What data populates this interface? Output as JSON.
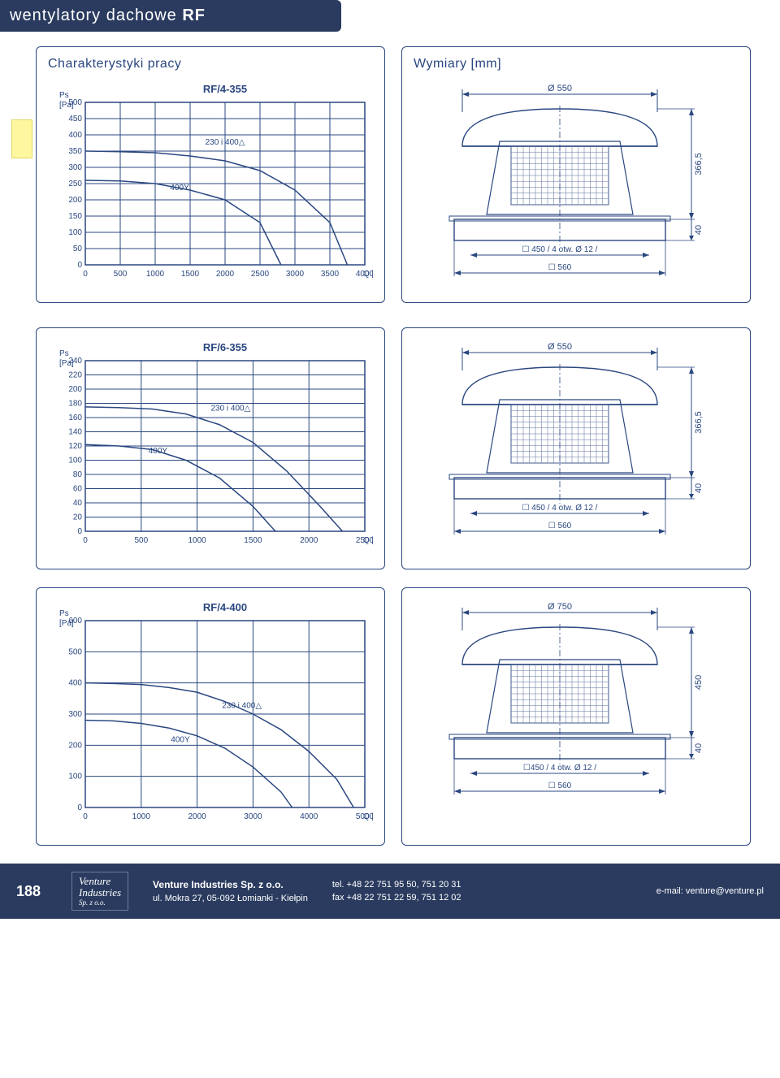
{
  "header": {
    "title_prefix": "wentylatory dachowe ",
    "title_bold": "RF"
  },
  "side_tab_color": "#fff7a0",
  "chart1": {
    "section_title": "Charakterystyki pracy",
    "title": "RF/4-355",
    "y_label": "Ps\n[Pa]",
    "x_label": "Q [m³/h]",
    "y_ticks": [
      0,
      50,
      100,
      150,
      200,
      250,
      300,
      350,
      400,
      450,
      500
    ],
    "x_ticks": [
      0,
      500,
      1000,
      1500,
      2000,
      2500,
      3000,
      3500,
      4000
    ],
    "curves": [
      {
        "label": "230 i 400△",
        "label_x": 2000,
        "label_y": 370,
        "points": [
          [
            0,
            350
          ],
          [
            500,
            348
          ],
          [
            1000,
            345
          ],
          [
            1500,
            335
          ],
          [
            2000,
            320
          ],
          [
            2500,
            290
          ],
          [
            3000,
            230
          ],
          [
            3500,
            130
          ],
          [
            3750,
            0
          ]
        ]
      },
      {
        "label": "400Y",
        "label_x": 1350,
        "label_y": 230,
        "points": [
          [
            0,
            260
          ],
          [
            500,
            258
          ],
          [
            1000,
            250
          ],
          [
            1500,
            230
          ],
          [
            2000,
            200
          ],
          [
            2500,
            130
          ],
          [
            2800,
            0
          ]
        ]
      }
    ],
    "grid_color": "#2a4780",
    "curve_color": "#2a4780",
    "text_color": "#2a4780",
    "bg": "#ffffff",
    "axis_fontsize": 10,
    "title_fontsize": 13
  },
  "dim1": {
    "section_title": "Wymiary [mm]",
    "top_dia": "Ø 550",
    "height_main": "366,5",
    "height_base": "40",
    "base_holes": "☐ 450 / 4 otw. Ø 12 /",
    "base_width": "☐ 560",
    "stroke": "#2a4780",
    "mesh": "#5a6f9a"
  },
  "chart2": {
    "title": "RF/6-355",
    "y_label": "Ps\n[Pa]",
    "x_label": "Q [m³/h]",
    "y_ticks": [
      0,
      20,
      40,
      60,
      80,
      100,
      120,
      140,
      160,
      180,
      200,
      220,
      240
    ],
    "x_ticks": [
      0,
      500,
      1000,
      1500,
      2000,
      2500
    ],
    "curves": [
      {
        "label": "230 i 400△",
        "label_x": 1300,
        "label_y": 170,
        "points": [
          [
            0,
            175
          ],
          [
            300,
            174
          ],
          [
            600,
            172
          ],
          [
            900,
            165
          ],
          [
            1200,
            150
          ],
          [
            1500,
            125
          ],
          [
            1800,
            85
          ],
          [
            2100,
            35
          ],
          [
            2300,
            0
          ]
        ]
      },
      {
        "label": "400Y",
        "label_x": 650,
        "label_y": 110,
        "points": [
          [
            0,
            122
          ],
          [
            300,
            120
          ],
          [
            600,
            115
          ],
          [
            900,
            100
          ],
          [
            1200,
            75
          ],
          [
            1500,
            35
          ],
          [
            1700,
            0
          ]
        ]
      }
    ],
    "grid_color": "#2a4780",
    "curve_color": "#2a4780",
    "text_color": "#2a4780",
    "bg": "#ffffff",
    "axis_fontsize": 10,
    "title_fontsize": 13
  },
  "dim2": {
    "top_dia": "Ø 550",
    "height_main": "366,5",
    "height_base": "40",
    "base_holes": "☐ 450 / 4 otw. Ø 12 /",
    "base_width": "☐ 560",
    "stroke": "#2a4780",
    "mesh": "#5a6f9a"
  },
  "chart3": {
    "title": "RF/4-400",
    "y_label": "Ps\n[Pa]",
    "x_label": "Q [m³/h]",
    "y_ticks": [
      0,
      100,
      200,
      300,
      400,
      500,
      600
    ],
    "x_ticks": [
      0,
      1000,
      2000,
      3000,
      4000,
      5000
    ],
    "curves": [
      {
        "label": "230 i 400△",
        "label_x": 2800,
        "label_y": 320,
        "points": [
          [
            0,
            400
          ],
          [
            500,
            398
          ],
          [
            1000,
            395
          ],
          [
            1500,
            385
          ],
          [
            2000,
            370
          ],
          [
            2500,
            340
          ],
          [
            3000,
            300
          ],
          [
            3500,
            250
          ],
          [
            4000,
            180
          ],
          [
            4500,
            90
          ],
          [
            4800,
            0
          ]
        ]
      },
      {
        "label": "400Y",
        "label_x": 1700,
        "label_y": 210,
        "points": [
          [
            0,
            280
          ],
          [
            500,
            278
          ],
          [
            1000,
            270
          ],
          [
            1500,
            255
          ],
          [
            2000,
            230
          ],
          [
            2500,
            190
          ],
          [
            3000,
            130
          ],
          [
            3500,
            50
          ],
          [
            3700,
            0
          ]
        ]
      }
    ],
    "grid_color": "#2a4780",
    "curve_color": "#2a4780",
    "text_color": "#2a4780",
    "bg": "#ffffff",
    "axis_fontsize": 10,
    "title_fontsize": 13
  },
  "dim3": {
    "top_dia": "Ø 750",
    "height_main": "450",
    "height_base": "40",
    "base_holes": "☐450 / 4 otw. Ø 12 /",
    "base_width": "☐ 560",
    "stroke": "#2a4780",
    "mesh": "#5a6f9a"
  },
  "footer": {
    "page_number": "188",
    "logo_line1": "Venture",
    "logo_line2": "Industries",
    "logo_line3": "Sp. z o.o.",
    "company": "Venture Industries Sp. z o.o.",
    "address": "ul. Mokra 27, 05-092 Łomianki - Kiełpin",
    "tel": "tel. +48 22 751 95 50, 751 20 31",
    "fax": "fax +48 22 751 22 59, 751 12 02",
    "email": "e-mail: venture@venture.pl"
  }
}
